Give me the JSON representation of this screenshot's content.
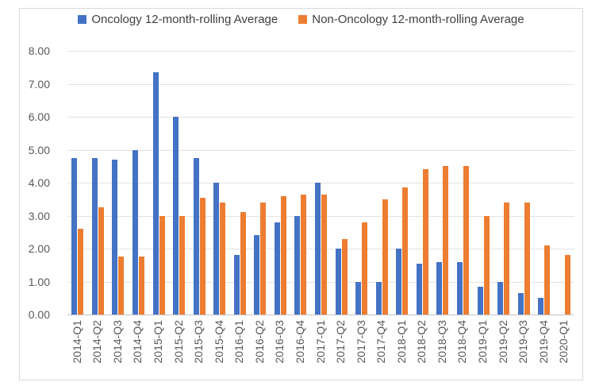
{
  "chart_data": {
    "type": "bar",
    "title": "",
    "xlabel": "",
    "ylabel": "",
    "ylim": [
      0,
      8
    ],
    "ytick_step": 1,
    "ytick_labels": [
      "0.00",
      "1.00",
      "2.00",
      "3.00",
      "4.00",
      "5.00",
      "6.00",
      "7.00",
      "8.00"
    ],
    "grid": true,
    "legend_position": "top",
    "categories": [
      "2014-Q1",
      "2014-Q2",
      "2014-Q3",
      "2014-Q4",
      "2015-Q1",
      "2015-Q2",
      "2015-Q3",
      "2015-Q4",
      "2016-Q1",
      "2016-Q2",
      "2016-Q3",
      "2016-Q4",
      "2017-Q1",
      "2017-Q2",
      "2017-Q3",
      "2017-Q4",
      "2018-Q1",
      "2018-Q2",
      "2018-Q3",
      "2018-Q4",
      "2019-Q1",
      "2019-Q2",
      "2019-Q3",
      "2019-Q4",
      "2020-Q1"
    ],
    "series": [
      {
        "name": "Oncology 12-month-rolling Average",
        "color": "#4472C4",
        "values": [
          4.75,
          4.75,
          4.7,
          5.0,
          7.35,
          6.0,
          4.75,
          4.0,
          1.8,
          2.4,
          2.8,
          3.0,
          4.0,
          2.0,
          1.0,
          1.0,
          2.0,
          1.55,
          1.6,
          1.6,
          0.85,
          1.0,
          0.65,
          0.5,
          null
        ]
      },
      {
        "name": "Non-Oncology 12-month-rolling Average",
        "color": "#ED7D31",
        "values": [
          2.6,
          3.25,
          1.75,
          1.75,
          3.0,
          3.0,
          3.55,
          3.4,
          3.1,
          3.4,
          3.6,
          3.65,
          3.65,
          2.3,
          2.8,
          3.5,
          3.85,
          4.4,
          4.5,
          4.5,
          3.0,
          3.4,
          3.4,
          2.1,
          1.8
        ]
      }
    ]
  },
  "colors": {
    "grid": "#e2e2e2",
    "axis": "#c6c6c6",
    "label_text": "#595959",
    "legend_text": "#404040",
    "frame_border": "#d9d9d9"
  }
}
